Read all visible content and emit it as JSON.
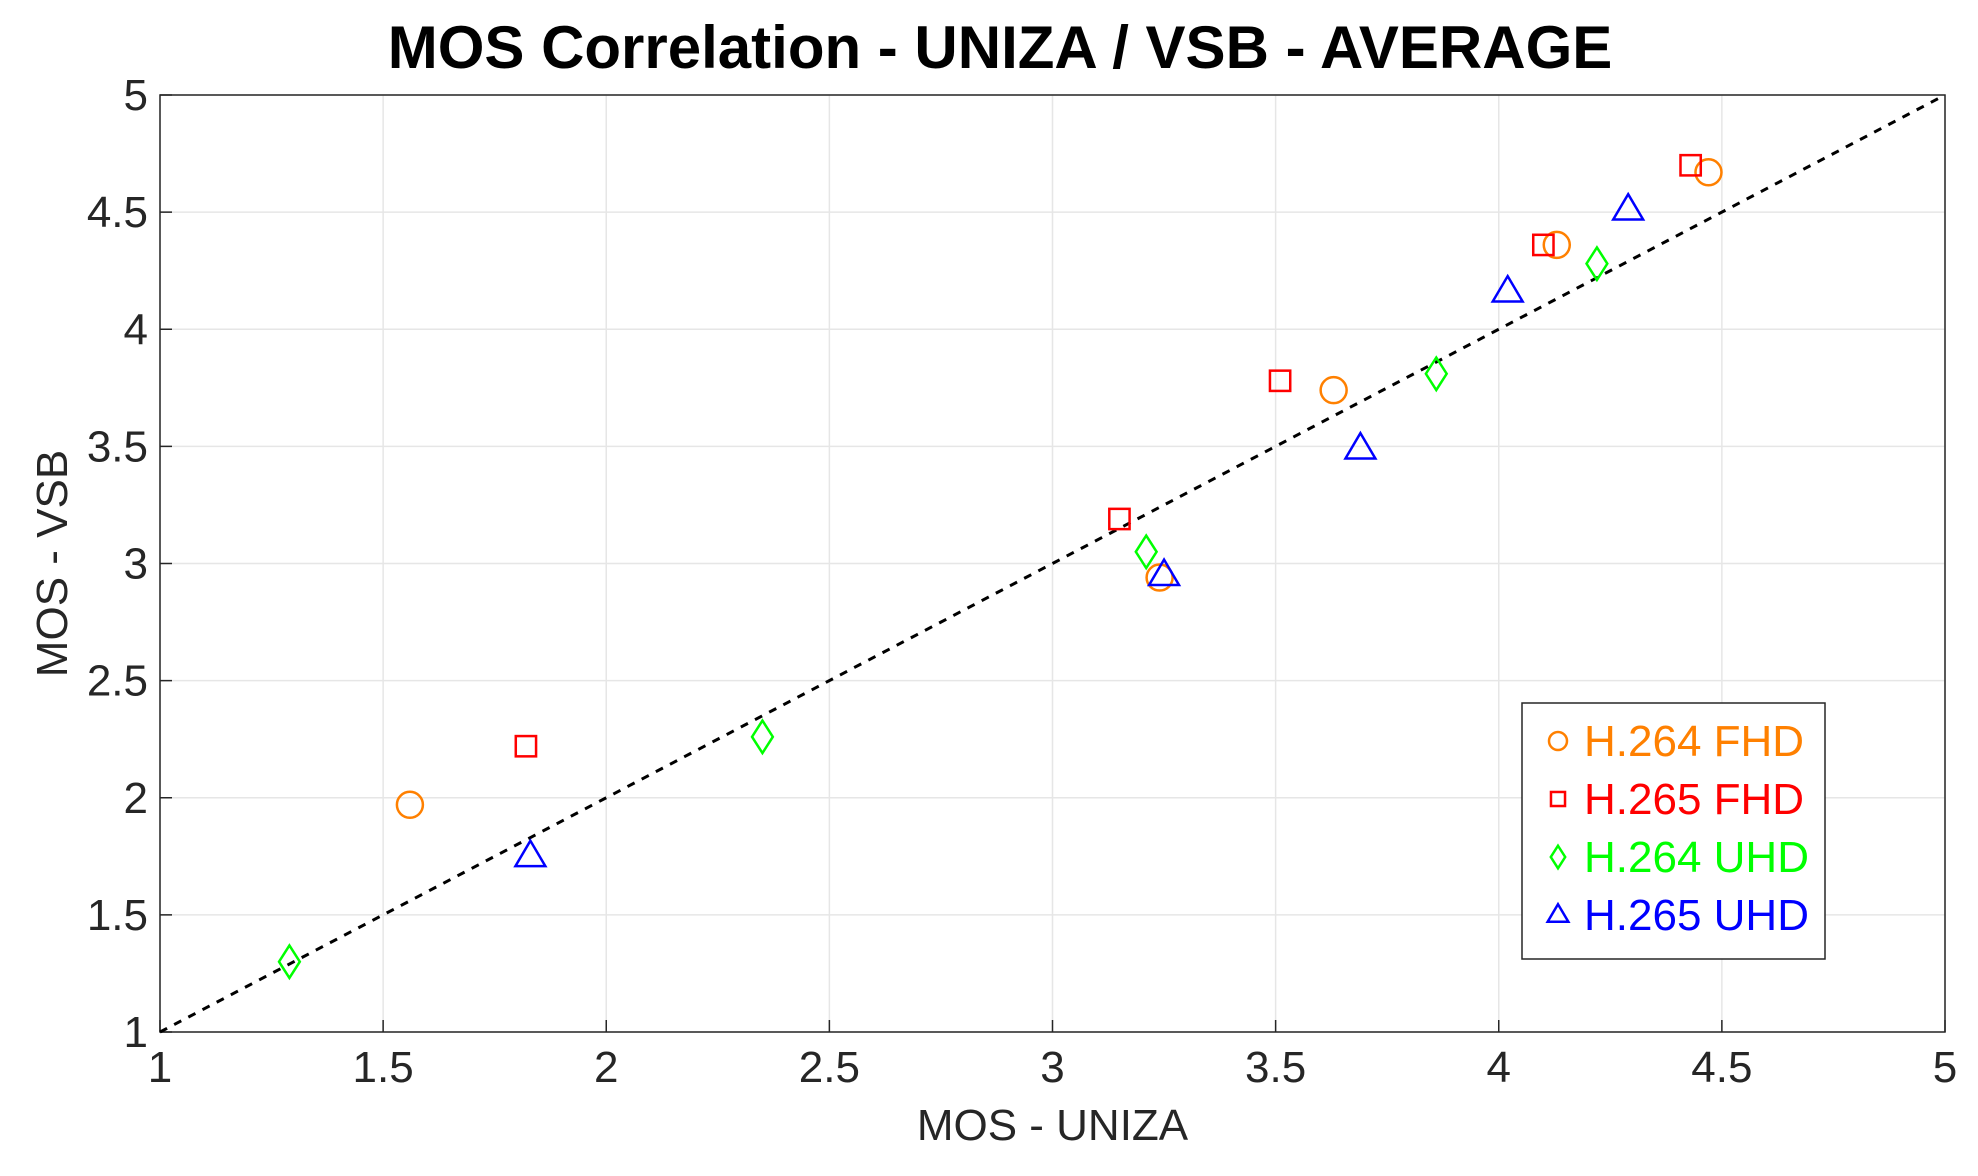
{
  "chart_data": {
    "type": "scatter",
    "title": "MOS Correlation - UNIZA / VSB - AVERAGE",
    "xlabel": "MOS - UNIZA",
    "ylabel": "MOS - VSB",
    "xlim": [
      1,
      5
    ],
    "ylim": [
      1,
      5
    ],
    "xticks": [
      "1",
      "1.5",
      "2",
      "2.5",
      "3",
      "3.5",
      "4",
      "4.5",
      "5"
    ],
    "yticks": [
      "1",
      "1.5",
      "2",
      "2.5",
      "3",
      "3.5",
      "4",
      "4.5",
      "5"
    ],
    "grid": true,
    "legend_position": "bottom-right",
    "reference_line": {
      "style": "dashed",
      "color": "#000000",
      "from": [
        1,
        1
      ],
      "to": [
        5,
        5
      ]
    },
    "series": [
      {
        "name": "H.264 FHD",
        "marker": "circle",
        "color": "#ff8000",
        "x": [
          1.56,
          3.24,
          3.63,
          4.13,
          4.47
        ],
        "y": [
          1.97,
          2.94,
          3.74,
          4.36,
          4.67
        ]
      },
      {
        "name": "H.265 FHD",
        "marker": "square",
        "color": "#ff0000",
        "x": [
          1.82,
          3.15,
          3.51,
          4.1,
          4.43
        ],
        "y": [
          2.22,
          3.19,
          3.78,
          4.36,
          4.7
        ]
      },
      {
        "name": "H.264 UHD",
        "marker": "diamond",
        "color": "#00ff00",
        "x": [
          1.29,
          2.35,
          3.21,
          3.86,
          4.22
        ],
        "y": [
          1.3,
          2.26,
          3.05,
          3.81,
          4.28
        ]
      },
      {
        "name": "H.265 UHD",
        "marker": "triangle",
        "color": "#0000ff",
        "x": [
          1.83,
          3.25,
          3.69,
          4.02,
          4.29
        ],
        "y": [
          1.75,
          2.95,
          3.49,
          4.16,
          4.51
        ]
      }
    ]
  }
}
